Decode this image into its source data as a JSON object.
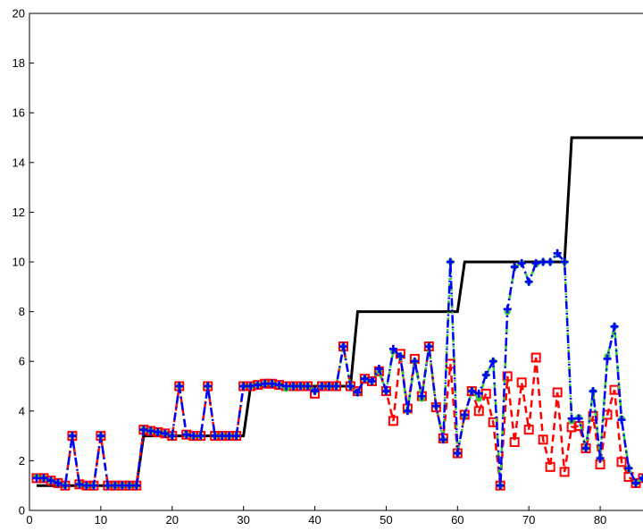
{
  "chart_data": {
    "type": "line",
    "title": "",
    "xlabel": "",
    "ylabel": "",
    "xlim": [
      0,
      86
    ],
    "ylim": [
      0,
      20
    ],
    "grid": false,
    "x_ticks": [
      0,
      10,
      20,
      30,
      40,
      50,
      60,
      70,
      80
    ],
    "y_ticks": [
      0,
      2,
      4,
      6,
      8,
      10,
      12,
      14,
      16,
      18,
      20
    ],
    "x": [
      1,
      2,
      3,
      4,
      5,
      6,
      7,
      8,
      9,
      10,
      11,
      12,
      13,
      14,
      15,
      16,
      17,
      18,
      19,
      20,
      21,
      22,
      23,
      24,
      25,
      26,
      27,
      28,
      29,
      30,
      31,
      32,
      33,
      34,
      35,
      36,
      37,
      38,
      39,
      40,
      41,
      42,
      43,
      44,
      45,
      46,
      47,
      48,
      49,
      50,
      51,
      52,
      53,
      54,
      55,
      56,
      57,
      58,
      59,
      60,
      61,
      62,
      63,
      64,
      65,
      66,
      67,
      68,
      69,
      70,
      71,
      72,
      73,
      74,
      75,
      76,
      77,
      78,
      79,
      80,
      81,
      82,
      83,
      84,
      85,
      86
    ],
    "series": [
      {
        "style": "solid",
        "marker": "none",
        "color": "#000000",
        "values": [
          1,
          1,
          1,
          1,
          1,
          1,
          1,
          1,
          1,
          1,
          1,
          1,
          1,
          1,
          1,
          3,
          3,
          3,
          3,
          3,
          3,
          3,
          3,
          3,
          3,
          3,
          3,
          3,
          3,
          3,
          5,
          5,
          5,
          5,
          5,
          5,
          5,
          5,
          5,
          5,
          5,
          5,
          5,
          5,
          5,
          8,
          8,
          8,
          8,
          8,
          8,
          8,
          8,
          8,
          8,
          8,
          8,
          8,
          8,
          8,
          10,
          10,
          10,
          10,
          10,
          10,
          10,
          10,
          10,
          10,
          10,
          10,
          10,
          10,
          10,
          15,
          15,
          15,
          15,
          15,
          15,
          15,
          15,
          15,
          15,
          15
        ]
      },
      {
        "style": "dashed",
        "marker": "square",
        "color": "#ff0000",
        "values": [
          1.3,
          1.3,
          1.2,
          1.1,
          1.0,
          3.0,
          1.05,
          1.0,
          1.0,
          3.0,
          1.0,
          1.0,
          1.0,
          1.0,
          1.0,
          3.25,
          3.2,
          3.15,
          3.1,
          3.0,
          5.0,
          3.05,
          3.0,
          3.0,
          5.0,
          3.0,
          3.0,
          3.0,
          3.0,
          5.0,
          5.0,
          5.05,
          5.1,
          5.1,
          5.05,
          5.0,
          5.0,
          5.0,
          5.0,
          4.7,
          5.0,
          5.0,
          5.0,
          6.6,
          5.0,
          4.8,
          5.3,
          5.2,
          5.6,
          4.8,
          3.6,
          6.3,
          4.1,
          6.1,
          4.6,
          6.6,
          4.15,
          2.9,
          5.9,
          2.3,
          3.85,
          4.8,
          4.0,
          4.7,
          3.55,
          1.0,
          5.4,
          2.75,
          5.15,
          3.25,
          6.15,
          2.85,
          1.75,
          4.75,
          1.55,
          3.35,
          3.4,
          2.5,
          3.8,
          1.85,
          3.85,
          4.85,
          1.95,
          1.35,
          1.1,
          1.3
        ]
      },
      {
        "style": "dashdot",
        "marker": "circle",
        "color": "#33cc33",
        "values": [
          1.35,
          1.3,
          1.2,
          1.1,
          1.0,
          3.0,
          1.05,
          1.0,
          1.0,
          3.0,
          1.0,
          1.0,
          1.0,
          1.0,
          1.0,
          3.25,
          3.2,
          3.15,
          3.1,
          3.0,
          5.0,
          3.05,
          3.0,
          3.0,
          5.0,
          3.0,
          3.0,
          3.0,
          3.0,
          5.0,
          5.0,
          5.05,
          5.1,
          5.1,
          5.05,
          4.9,
          5.0,
          5.0,
          5.0,
          4.8,
          5.0,
          5.0,
          5.0,
          6.6,
          5.0,
          4.75,
          5.3,
          5.2,
          5.6,
          4.8,
          6.4,
          6.2,
          4.0,
          6.0,
          4.5,
          6.6,
          4.2,
          2.85,
          10.0,
          2.3,
          3.8,
          4.8,
          4.5,
          5.45,
          6.0,
          1.0,
          8.0,
          9.8,
          9.95,
          9.2,
          9.9,
          10.0,
          10.0,
          10.3,
          10.0,
          3.6,
          3.75,
          2.5,
          4.8,
          2.1,
          6.2,
          7.4,
          3.7,
          1.7,
          1.1,
          1.3
        ]
      },
      {
        "style": "dashdot",
        "marker": "plus",
        "color": "#0000ff",
        "values": [
          1.3,
          1.3,
          1.2,
          1.1,
          1.0,
          3.0,
          1.05,
          1.0,
          1.0,
          3.0,
          1.0,
          1.0,
          1.0,
          1.0,
          1.0,
          3.25,
          3.2,
          3.15,
          3.1,
          3.0,
          5.0,
          3.05,
          3.0,
          3.0,
          5.0,
          3.0,
          3.0,
          3.0,
          3.0,
          5.0,
          5.0,
          5.05,
          5.1,
          5.1,
          5.05,
          5.0,
          5.0,
          5.0,
          5.0,
          4.8,
          5.0,
          5.0,
          5.0,
          6.6,
          5.0,
          4.75,
          5.3,
          5.2,
          5.7,
          4.8,
          6.5,
          6.2,
          4.0,
          6.0,
          4.6,
          6.6,
          4.2,
          2.85,
          10.0,
          2.3,
          3.85,
          4.8,
          4.7,
          5.45,
          6.0,
          1.0,
          8.1,
          9.8,
          9.95,
          9.2,
          9.95,
          10.0,
          10.0,
          10.35,
          10.0,
          3.7,
          3.7,
          2.5,
          4.8,
          2.1,
          6.1,
          7.4,
          3.65,
          1.7,
          1.1,
          1.3
        ]
      }
    ]
  }
}
